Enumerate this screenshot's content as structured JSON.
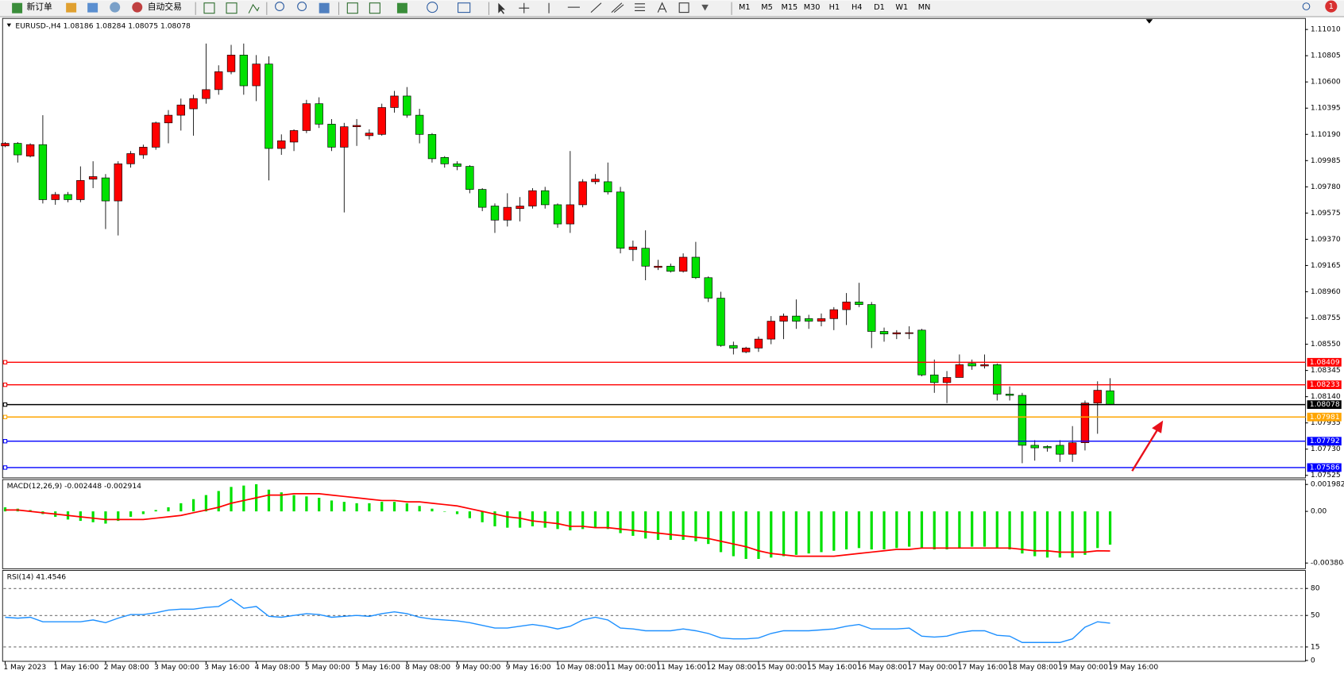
{
  "toolbar": {
    "buttons": [
      "新订单",
      "自动交易"
    ],
    "timeframes": [
      "M1",
      "M5",
      "M15",
      "M30",
      "H1",
      "H4",
      "D1",
      "W1",
      "MN"
    ],
    "badge": 1
  },
  "chart_data": [
    {
      "type": "candlestick",
      "title": "EURUSD-,H4  1.08186 1.08284 1.08075 1.08078",
      "up_color": "#ff0000",
      "down_color": "#00e100",
      "categories": [
        "1 May 2023",
        null,
        null,
        null,
        "1 May 16:00",
        null,
        null,
        null,
        "2 May 08:00",
        null,
        null,
        null,
        "3 May 00:00",
        null,
        null,
        null,
        "3 May 16:00",
        null,
        null,
        null,
        "4 May 08:00",
        null,
        null,
        null,
        "5 May 00:00",
        null,
        null,
        null,
        "5 May 16:00",
        null,
        null,
        null,
        "8 May 08:00",
        null,
        null,
        null,
        "9 May 00:00",
        null,
        null,
        null,
        "9 May 16:00",
        null,
        null,
        null,
        "10 May 08:00",
        null,
        null,
        null,
        "11 May 00:00",
        null,
        null,
        null,
        "11 May 16:00",
        null,
        null,
        null,
        "12 May 08:00",
        null,
        null,
        null,
        "15 May 00:00",
        null,
        null,
        null,
        "15 May 16:00",
        null,
        null,
        null,
        "16 May 08:00",
        null,
        null,
        null,
        "17 May 00:00",
        null,
        null,
        null,
        "17 May 16:00",
        null,
        null,
        null,
        "18 May 08:00",
        null,
        null,
        null,
        "19 May 00:00",
        null,
        null,
        null,
        "19 May 16:00"
      ],
      "open": [
        1.101,
        1.1012,
        1.1002,
        1.1011,
        1.0968,
        1.0972,
        1.0968,
        1.0984,
        1.0985,
        1.0967,
        1.0996,
        1.1003,
        1.1009,
        1.1028,
        1.1034,
        1.1039,
        1.1047,
        1.1054,
        1.1068,
        1.1081,
        1.1057,
        1.1074,
        1.1008,
        1.1013,
        1.1022,
        1.1043,
        1.1027,
        1.1009,
        1.1025,
        1.1018,
        1.1019,
        1.104,
        1.1049,
        1.1034,
        1.1019,
        1.1001,
        1.0996,
        1.0994,
        1.0976,
        1.0963,
        1.0952,
        1.0961,
        1.0963,
        1.0975,
        1.0964,
        1.0949,
        1.0964,
        1.0982,
        1.0982,
        1.0974,
        1.0929,
        1.093,
        1.0915,
        1.0916,
        1.0912,
        1.0923,
        1.0907,
        1.0891,
        1.0854,
        1.0849,
        1.0852,
        1.0859,
        1.0873,
        1.0877,
        1.0875,
        1.0873,
        1.0875,
        1.0882,
        1.0888,
        1.0886,
        1.0865,
        1.0863,
        1.0864,
        1.0866,
        1.0831,
        1.0825,
        1.0829,
        1.084,
        1.0838,
        1.0839,
        1.0816,
        1.0815,
        1.0776,
        1.0775,
        1.0776,
        1.0769,
        1.0778,
        1.0809,
        1.08186
      ],
      "high": [
        1.1013,
        1.1013,
        1.1012,
        1.1034,
        1.0974,
        1.0974,
        1.0994,
        1.0998,
        1.0988,
        1.0998,
        1.1006,
        1.1011,
        1.1029,
        1.1038,
        1.1047,
        1.105,
        1.109,
        1.1073,
        1.1089,
        1.109,
        1.1081,
        1.108,
        1.1019,
        1.1023,
        1.1046,
        1.1048,
        1.1031,
        1.1028,
        1.1031,
        1.1023,
        1.1043,
        1.1053,
        1.1056,
        1.1039,
        1.102,
        1.1002,
        1.0998,
        1.0995,
        1.0977,
        1.0965,
        1.0973,
        1.097,
        1.0977,
        1.0978,
        1.0965,
        1.1006,
        1.0984,
        1.0988,
        1.0997,
        1.0978,
        1.0936,
        1.0944,
        1.0921,
        1.0918,
        1.0926,
        1.0935,
        1.0908,
        1.0896,
        1.0857,
        1.0853,
        1.0861,
        1.0877,
        1.0879,
        1.089,
        1.0878,
        1.0879,
        1.0884,
        1.0895,
        1.0903,
        1.0888,
        1.0868,
        1.0866,
        1.0869,
        1.0867,
        1.0843,
        1.0834,
        1.0847,
        1.0843,
        1.0847,
        1.084,
        1.0822,
        1.0817,
        1.078,
        1.0776,
        1.078,
        1.0791,
        1.0811,
        1.0826,
        1.08284
      ],
      "low": [
        1.1009,
        1.0997,
        1.1001,
        1.0965,
        1.0964,
        1.0966,
        1.0966,
        1.0977,
        1.0945,
        1.094,
        1.0993,
        1.1,
        1.1007,
        1.1012,
        1.1022,
        1.1018,
        1.1043,
        1.105,
        1.1066,
        1.105,
        1.1045,
        1.0983,
        1.1003,
        1.1006,
        1.102,
        1.1024,
        1.1006,
        1.0958,
        1.101,
        1.1015,
        1.1018,
        1.1036,
        1.1032,
        1.1012,
        1.0997,
        1.0993,
        1.0991,
        1.0973,
        1.0959,
        1.0942,
        1.0947,
        1.0951,
        1.0961,
        1.0961,
        1.0946,
        1.0942,
        1.0962,
        1.098,
        1.0972,
        1.0926,
        1.092,
        1.0905,
        1.0913,
        1.0911,
        1.0911,
        1.0906,
        1.0888,
        1.0853,
        1.0847,
        1.0848,
        1.0849,
        1.0855,
        1.0859,
        1.0867,
        1.0867,
        1.0869,
        1.0866,
        1.087,
        1.0884,
        1.0852,
        1.0857,
        1.0859,
        1.0859,
        1.083,
        1.0817,
        1.0809,
        1.0829,
        1.0835,
        1.0836,
        1.0811,
        1.0811,
        1.0762,
        1.0764,
        1.0771,
        1.0763,
        1.0763,
        1.0772,
        1.0785,
        1.08075
      ],
      "close": [
        1.1012,
        1.1003,
        1.1011,
        1.0968,
        1.0972,
        1.0968,
        1.0983,
        1.0986,
        1.0967,
        1.0996,
        1.1004,
        1.1009,
        1.1028,
        1.1034,
        1.1042,
        1.1047,
        1.1054,
        1.1068,
        1.1081,
        1.1057,
        1.1074,
        1.1008,
        1.1014,
        1.1022,
        1.1043,
        1.1027,
        1.1009,
        1.1025,
        1.1026,
        1.102,
        1.104,
        1.1049,
        1.1034,
        1.1019,
        1.1,
        1.0996,
        1.0994,
        1.0976,
        1.0962,
        1.0952,
        1.0962,
        1.0963,
        1.0975,
        1.0964,
        1.0949,
        1.0964,
        1.0982,
        1.0984,
        1.0974,
        1.093,
        1.0931,
        1.0916,
        1.0916,
        1.0912,
        1.0923,
        1.0907,
        1.0891,
        1.0854,
        1.0852,
        1.0852,
        1.0859,
        1.0873,
        1.0877,
        1.0873,
        1.0873,
        1.0875,
        1.0882,
        1.0888,
        1.0886,
        1.0865,
        1.0863,
        1.0864,
        1.0864,
        1.0831,
        1.0825,
        1.0829,
        1.0839,
        1.0838,
        1.0839,
        1.0816,
        1.0815,
        1.0776,
        1.0774,
        1.0774,
        1.0769,
        1.0778,
        1.0809,
        1.0819,
        1.08078
      ],
      "levels": [
        {
          "value": 1.08409,
          "color": "#ff0000"
        },
        {
          "value": 1.08233,
          "color": "#ff0000"
        },
        {
          "value": 1.08078,
          "color": "#000000"
        },
        {
          "value": 1.07981,
          "color": "#ffa500"
        },
        {
          "value": 1.07792,
          "color": "#0000ff"
        },
        {
          "value": 1.07586,
          "color": "#0000ff"
        }
      ],
      "ylim": [
        1.07512,
        1.1109
      ],
      "yticks": [
        {
          "value": 1.1101,
          "label": "1.11010"
        },
        {
          "value": 1.10805,
          "label": "1.10805"
        },
        {
          "value": 1.106,
          "label": "1.10600"
        },
        {
          "value": 1.10395,
          "label": "1.10395"
        },
        {
          "value": 1.1019,
          "label": "1.10190"
        },
        {
          "value": 1.09985,
          "label": "1.09985"
        },
        {
          "value": 1.0978,
          "label": "1.09780"
        },
        {
          "value": 1.09575,
          "label": "1.09575"
        },
        {
          "value": 1.0937,
          "label": "1.09370"
        },
        {
          "value": 1.09165,
          "label": "1.09165"
        },
        {
          "value": 1.0896,
          "label": "1.08960"
        },
        {
          "value": 1.08755,
          "label": "1.08755"
        },
        {
          "value": 1.0855,
          "label": "1.08550"
        },
        {
          "value": 1.08345,
          "label": "1.08345"
        },
        {
          "value": 1.0814,
          "label": "1.08140"
        },
        {
          "value": 1.07935,
          "label": "1.07935"
        },
        {
          "value": 1.0773,
          "label": "1.07730"
        },
        {
          "value": 1.07525,
          "label": "1.07525"
        }
      ],
      "grid": false
    },
    {
      "type": "macd",
      "title": "MACD(12,26,9) -0.002448 -0.002914",
      "series": [
        {
          "name": "MACD",
          "color": "#00e100",
          "values": [
            0.0003,
            0.0002,
            0.0001,
            -0.0002,
            -0.0004,
            -0.0006,
            -0.0007,
            -0.0008,
            -0.0009,
            -0.0007,
            -0.0004,
            -0.0002,
            0.0001,
            0.0003,
            0.0006,
            0.0009,
            0.0012,
            0.0015,
            0.0018,
            0.0019,
            0.002,
            0.0016,
            0.0014,
            0.0012,
            0.0011,
            0.001,
            0.0008,
            0.0007,
            0.0006,
            0.0006,
            0.0007,
            0.0007,
            0.0006,
            0.0004,
            0.0002,
            0.0,
            -0.0002,
            -0.0005,
            -0.0008,
            -0.0011,
            -0.0012,
            -0.0012,
            -0.0011,
            -0.0012,
            -0.0013,
            -0.0014,
            -0.0013,
            -0.0012,
            -0.0013,
            -0.0016,
            -0.0018,
            -0.002,
            -0.0021,
            -0.0021,
            -0.0021,
            -0.0022,
            -0.0024,
            -0.003,
            -0.0033,
            -0.0035,
            -0.0035,
            -0.0034,
            -0.0033,
            -0.0032,
            -0.0031,
            -0.003,
            -0.0029,
            -0.0028,
            -0.0027,
            -0.0028,
            -0.0028,
            -0.0027,
            -0.0026,
            -0.0027,
            -0.0028,
            -0.0028,
            -0.0027,
            -0.0026,
            -0.0026,
            -0.0027,
            -0.0028,
            -0.0031,
            -0.0033,
            -0.0034,
            -0.0034,
            -0.0034,
            -0.0032,
            -0.0027,
            -0.002448
          ]
        },
        {
          "name": "Signal",
          "color": "#ff0000",
          "values": [
            0.0001,
            0.0001,
            0.0,
            -0.0001,
            -0.0002,
            -0.0003,
            -0.0004,
            -0.0005,
            -0.0006,
            -0.0006,
            -0.0006,
            -0.0006,
            -0.0005,
            -0.0004,
            -0.0003,
            -0.0001,
            0.0001,
            0.0003,
            0.0006,
            0.0008,
            0.001,
            0.0012,
            0.0012,
            0.0013,
            0.0013,
            0.0013,
            0.0012,
            0.0011,
            0.001,
            0.0009,
            0.0008,
            0.0008,
            0.0007,
            0.0007,
            0.0006,
            0.0005,
            0.0004,
            0.0002,
            0.0,
            -0.0002,
            -0.0004,
            -0.0005,
            -0.0007,
            -0.0008,
            -0.0009,
            -0.0011,
            -0.0011,
            -0.0012,
            -0.0012,
            -0.0013,
            -0.0014,
            -0.0015,
            -0.0016,
            -0.0017,
            -0.0018,
            -0.0019,
            -0.002,
            -0.0022,
            -0.0024,
            -0.0026,
            -0.0029,
            -0.0031,
            -0.0032,
            -0.0033,
            -0.0033,
            -0.0033,
            -0.0033,
            -0.0032,
            -0.0031,
            -0.003,
            -0.0029,
            -0.0028,
            -0.0028,
            -0.0027,
            -0.0027,
            -0.0027,
            -0.0027,
            -0.0027,
            -0.0027,
            -0.0027,
            -0.0027,
            -0.0028,
            -0.0029,
            -0.0029,
            -0.003,
            -0.003,
            -0.003,
            -0.0029,
            -0.002914
          ]
        }
      ],
      "ylim": [
        -0.00416,
        0.00234
      ],
      "yticks": [
        0.001982,
        {
          "value": 0,
          "label": "0.00"
        },
        -0.003804
      ],
      "grid": false
    },
    {
      "type": "line",
      "title": "RSI(14) 41.4546",
      "color": "#1e90ff",
      "values": [
        48,
        47,
        48,
        43,
        43,
        43,
        43,
        45,
        42,
        47,
        51,
        51,
        53,
        56,
        57,
        57,
        59,
        60,
        68,
        58,
        60,
        49,
        48,
        50,
        52,
        51,
        48,
        49,
        50,
        49,
        52,
        54,
        52,
        48,
        46,
        45,
        44,
        42,
        39,
        36,
        36,
        38,
        40,
        38,
        35,
        38,
        45,
        48,
        45,
        36,
        35,
        33,
        33,
        33,
        35,
        33,
        30,
        25,
        24,
        24,
        25,
        30,
        33,
        33,
        33,
        34,
        35,
        38,
        40,
        35,
        35,
        35,
        36,
        27,
        26,
        27,
        31,
        33,
        33,
        28,
        27,
        20,
        20,
        20,
        20,
        24,
        37,
        43,
        41.4546
      ],
      "ylim": [
        0,
        100
      ],
      "yticks": [
        80,
        50,
        15,
        0
      ],
      "grid": true
    }
  ]
}
